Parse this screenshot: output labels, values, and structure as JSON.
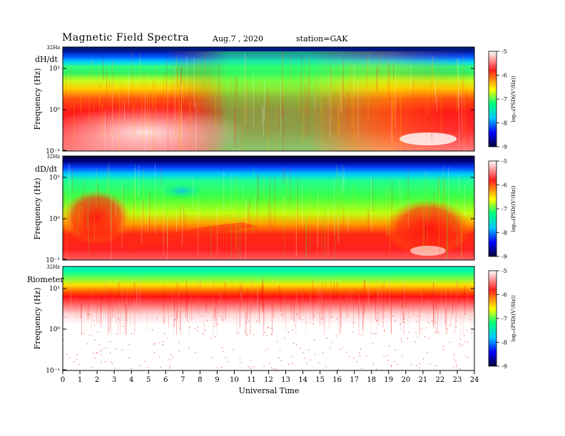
{
  "header": {
    "title": "Magnetic  Field  Spectra",
    "date": "Aug.7  , 2020",
    "station": "station=GAK"
  },
  "chart_data": [
    {
      "type": "heatmap",
      "panel_label": "dH/dt",
      "ylabel": "Frequency (Hz)",
      "y_scale": "log",
      "y_top_label": "32Hz",
      "yticks": [
        "10⁻¹",
        "10⁰",
        "10¹"
      ],
      "colorbar": {
        "label": "log₁₀(PSD((V²/Hz))",
        "ticks": [
          "-5",
          "-6",
          "-7",
          "-8",
          "-9"
        ],
        "range": [
          -9,
          -5
        ]
      }
    },
    {
      "type": "heatmap",
      "panel_label": "dD/dt",
      "ylabel": "Frequency (Hz)",
      "y_scale": "log",
      "y_top_label": "32Hz",
      "yticks": [
        "10⁻¹",
        "10⁰",
        "10¹"
      ],
      "colorbar": {
        "label": "log₁₀(PSD((V²/Hz))",
        "ticks": [
          "-5",
          "-6",
          "-7",
          "-8",
          "-9"
        ],
        "range": [
          -9,
          -5
        ]
      }
    },
    {
      "type": "heatmap",
      "panel_label": "Riometer",
      "ylabel": "Frequency (Hz)",
      "y_scale": "log",
      "y_top_label": "32Hz",
      "yticks": [
        "10⁻¹",
        "10⁰",
        "10¹"
      ],
      "colorbar": {
        "label": "log₁₀(PSD((V²/Hz))",
        "ticks": [
          "-5",
          "-6",
          "-7",
          "-8",
          "-9"
        ],
        "range": [
          -9,
          -5
        ]
      }
    }
  ],
  "xaxis": {
    "label": "Universal Time",
    "ticks": [
      "0",
      "1",
      "2",
      "3",
      "4",
      "5",
      "6",
      "7",
      "8",
      "9",
      "10",
      "11",
      "12",
      "13",
      "14",
      "15",
      "16",
      "17",
      "18",
      "19",
      "20",
      "21",
      "22",
      "23",
      "24"
    ],
    "range": [
      0,
      24
    ]
  },
  "colors": {
    "scale": [
      "#00003a",
      "#0000ff",
      "#00c8ff",
      "#00ff80",
      "#ffff00",
      "#ff8000",
      "#ff0000",
      "#ffffff"
    ]
  }
}
